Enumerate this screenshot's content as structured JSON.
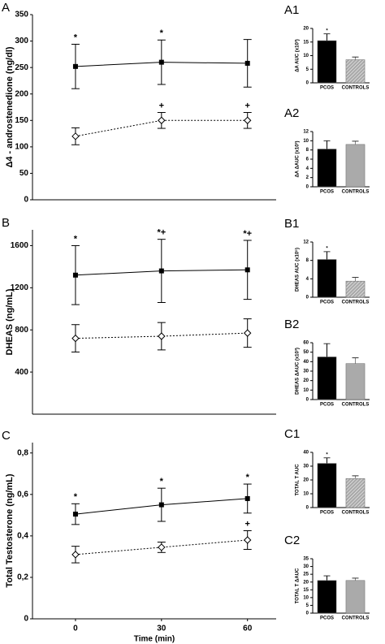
{
  "chart_data": [
    {
      "type": "line",
      "panel": "A",
      "y_label": "Δ4 - androstenedione (ng/dl)",
      "x": [
        0,
        30,
        60
      ],
      "xlim": [
        -15,
        70
      ],
      "ylim": [
        0,
        350
      ],
      "yticks": [
        0,
        50,
        100,
        150,
        200,
        250,
        300,
        350
      ],
      "series": [
        {
          "color": "#000000",
          "marker": "square",
          "line_style": "solid",
          "values": [
            252,
            260,
            258
          ],
          "errors": [
            42,
            42,
            45
          ],
          "point_labels": [
            "*",
            "*",
            null
          ]
        },
        {
          "color": "#000000",
          "marker": "diamond",
          "line_style": "dotted",
          "values": [
            120,
            150,
            150
          ],
          "errors": [
            16,
            15,
            15
          ],
          "point_labels": [
            null,
            "+",
            "+"
          ]
        }
      ]
    },
    {
      "type": "line",
      "panel": "B",
      "y_label": "DHEAS (ng/mL)",
      "x": [
        0,
        30,
        60
      ],
      "xlim": [
        -15,
        70
      ],
      "ylim": [
        0,
        1750
      ],
      "yticks": [
        400,
        800,
        1200,
        1600
      ],
      "series": [
        {
          "color": "#000000",
          "marker": "square",
          "line_style": "solid",
          "values": [
            1320,
            1360,
            1370
          ],
          "errors": [
            280,
            300,
            280
          ],
          "point_labels": [
            "*",
            "*+",
            "*+"
          ]
        },
        {
          "color": "#000000",
          "marker": "diamond",
          "line_style": "dotted",
          "values": [
            720,
            740,
            770
          ],
          "errors": [
            130,
            130,
            135
          ],
          "point_labels": [
            null,
            null,
            null
          ]
        }
      ]
    },
    {
      "type": "line",
      "panel": "C",
      "y_label": "Total Testosterone (ng/mL)",
      "x_label": "Time (min)",
      "x": [
        0,
        30,
        60
      ],
      "xlim": [
        -15,
        70
      ],
      "xticks": [
        0,
        30,
        60
      ],
      "ylim": [
        0,
        0.85
      ],
      "yticks": [
        0,
        {
          "value": 0.2,
          "label": "0,2"
        },
        {
          "value": 0.4,
          "label": "0,4"
        },
        {
          "value": 0.6,
          "label": "0,6"
        },
        {
          "value": 0.8,
          "label": "0,8"
        }
      ],
      "series": [
        {
          "color": "#000000",
          "marker": "square",
          "line_style": "solid",
          "values": [
            0.505,
            0.55,
            0.58
          ],
          "errors": [
            0.05,
            0.08,
            0.07
          ],
          "point_labels": [
            "*",
            "*",
            "*"
          ]
        },
        {
          "color": "#000000",
          "marker": "diamond",
          "line_style": "dotted",
          "values": [
            0.31,
            0.345,
            0.38
          ],
          "errors": [
            0.04,
            0.025,
            0.045
          ],
          "point_labels": [
            null,
            null,
            "+"
          ]
        }
      ]
    },
    {
      "type": "bar",
      "panel": "A1",
      "y_label": "ΔA AUC (x10³)",
      "categories": [
        "PCOS",
        "CONTROLS"
      ],
      "values": [
        15.5,
        8.5
      ],
      "errors": [
        2.5,
        1
      ],
      "point_labels": [
        "*",
        null
      ],
      "colors": [
        "#000000",
        "#aaaaaa"
      ],
      "hatched": [
        false,
        true
      ],
      "ylim": [
        0,
        20
      ],
      "yticks": [
        0,
        5,
        10,
        15,
        20
      ]
    },
    {
      "type": "bar",
      "panel": "A2",
      "y_label": "ΔA ΔAUC (x10³)",
      "categories": [
        "PCOS",
        "CONTROLS"
      ],
      "values": [
        8.2,
        9.2
      ],
      "errors": [
        1.8,
        0.7
      ],
      "point_labels": [
        null,
        null
      ],
      "colors": [
        "#000000",
        "#aaaaaa"
      ],
      "hatched": [
        false,
        false
      ],
      "ylim": [
        0,
        12
      ],
      "yticks": [
        0,
        2,
        4,
        6,
        8,
        10,
        12
      ]
    },
    {
      "type": "bar",
      "panel": "B1",
      "y_label": "DHEAS AUC (x10⁵)",
      "categories": [
        "PCOS",
        "CONTROLS"
      ],
      "values": [
        8.2,
        3.5
      ],
      "errors": [
        1.7,
        0.8
      ],
      "point_labels": [
        "*",
        null
      ],
      "colors": [
        "#000000",
        "#aaaaaa"
      ],
      "hatched": [
        false,
        true
      ],
      "ylim": [
        0,
        12
      ],
      "yticks": [
        0,
        4,
        8,
        12
      ]
    },
    {
      "type": "bar",
      "panel": "B2",
      "y_label": "DHEAS ΔAUC (x10³)",
      "categories": [
        "PCOS",
        "CONTROLS"
      ],
      "values": [
        45,
        38
      ],
      "errors": [
        14,
        6
      ],
      "point_labels": [
        null,
        null
      ],
      "colors": [
        "#000000",
        "#aaaaaa"
      ],
      "hatched": [
        false,
        false
      ],
      "ylim": [
        0,
        60
      ],
      "yticks": [
        0,
        10,
        20,
        30,
        40,
        50,
        60
      ]
    },
    {
      "type": "bar",
      "panel": "C1",
      "y_label": "TOTAL T AUC",
      "categories": [
        "PCOS",
        "CONTROLS"
      ],
      "values": [
        32,
        21
      ],
      "errors": [
        4,
        2
      ],
      "point_labels": [
        "*",
        null
      ],
      "colors": [
        "#000000",
        "#aaaaaa"
      ],
      "hatched": [
        false,
        true
      ],
      "ylim": [
        0,
        40
      ],
      "yticks": [
        0,
        10,
        20,
        30,
        40
      ]
    },
    {
      "type": "bar",
      "panel": "C2",
      "y_label": "TOTAL T ΔAUC",
      "categories": [
        "PCOS",
        "CONTROLS"
      ],
      "values": [
        21,
        21
      ],
      "errors": [
        3,
        1.5
      ],
      "point_labels": [
        null,
        null
      ],
      "colors": [
        "#000000",
        "#aaaaaa"
      ],
      "hatched": [
        false,
        false
      ],
      "ylim": [
        0,
        35
      ],
      "yticks": [
        0,
        5,
        10,
        15,
        20,
        25,
        30,
        35
      ]
    }
  ]
}
